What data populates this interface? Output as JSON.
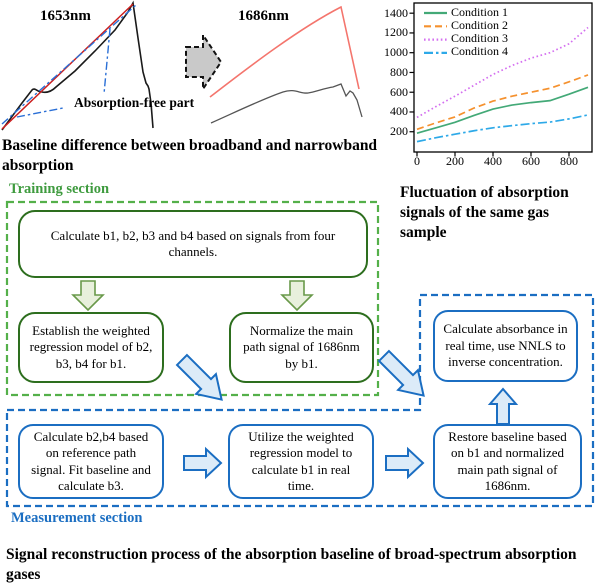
{
  "panel_baseline": {
    "label_1653": "1653nm",
    "label_1686": "1686nm",
    "absorption_free_label": "Absorption-free part",
    "caption": "Baseline difference between broadband and narrowband absorption"
  },
  "panel_fluctuation": {
    "caption": "Fluctuation of absorption signals of the same gas sample"
  },
  "chart_data": {
    "type": "line",
    "title": "",
    "xlabel": "",
    "ylabel": "",
    "x": [
      0,
      100,
      200,
      300,
      400,
      500,
      600,
      700,
      800,
      900
    ],
    "series": [
      {
        "name": "Condition 1",
        "style": "solid",
        "color": "#43a977",
        "values": [
          185,
          240,
          295,
          365,
          430,
          470,
          495,
          515,
          580,
          650
        ]
      },
      {
        "name": "Condition 2",
        "style": "dashed",
        "color": "#f5912e",
        "values": [
          225,
          290,
          350,
          440,
          510,
          560,
          600,
          640,
          705,
          775
        ]
      },
      {
        "name": "Condition 3",
        "style": "dotted",
        "color": "#d46ff0",
        "values": [
          345,
          455,
          560,
          670,
          780,
          870,
          945,
          1000,
          1090,
          1255
        ]
      },
      {
        "name": "Condition 4",
        "style": "dashdot",
        "color": "#2da9e8",
        "values": [
          100,
          140,
          175,
          210,
          240,
          262,
          282,
          298,
          330,
          370
        ]
      }
    ],
    "xticks": [
      0,
      200,
      400,
      600,
      800
    ],
    "yticks": [
      200,
      400,
      600,
      800,
      1000,
      1200,
      1400
    ],
    "xlim": [
      0,
      920
    ],
    "ylim": [
      0,
      1500
    ],
    "grid": false,
    "legend_position": "top-left"
  },
  "flowchart": {
    "training": {
      "label": "Training section",
      "box_calc_b": "Calculate b1, b2, b3 and b4 based on signals from four channels.",
      "box_regression": "Establish the weighted regression model of b2, b3, b4 for b1.",
      "box_normalize": "Normalize the main path signal of 1686nm by b1."
    },
    "measurement": {
      "label": "Measurement section",
      "box_calc_b2b4": "Calculate b2,b4 based on reference path signal. Fit baseline and calculate b3.",
      "box_utilize": "Utilize the weighted regression model to calculate b1 in real time.",
      "box_restore": "Restore baseline based on b1 and normalized main path signal of 1686nm.",
      "box_absorbance": "Calculate absorbance in real time, use NNLS to inverse concentration."
    }
  },
  "caption_bottom": "Signal reconstruction process of the absorption baseline of broad-spectrum absorption gases",
  "colors": {
    "training_dash_green": "#54b04a",
    "training_box_border": "#2d6e1e",
    "training_label_green": "#3f9b3f",
    "measurement_blue": "#1b6ec2",
    "arrow_fill_blue": "#dcebf8",
    "arrow_fill_green": "#e8f0dc",
    "sketch_red_1653": "#cc1f1f",
    "sketch_red_1686": "#f4756d",
    "sketch_annotation_blue": "#2a6fd6",
    "sketch_gray": "#555555"
  }
}
